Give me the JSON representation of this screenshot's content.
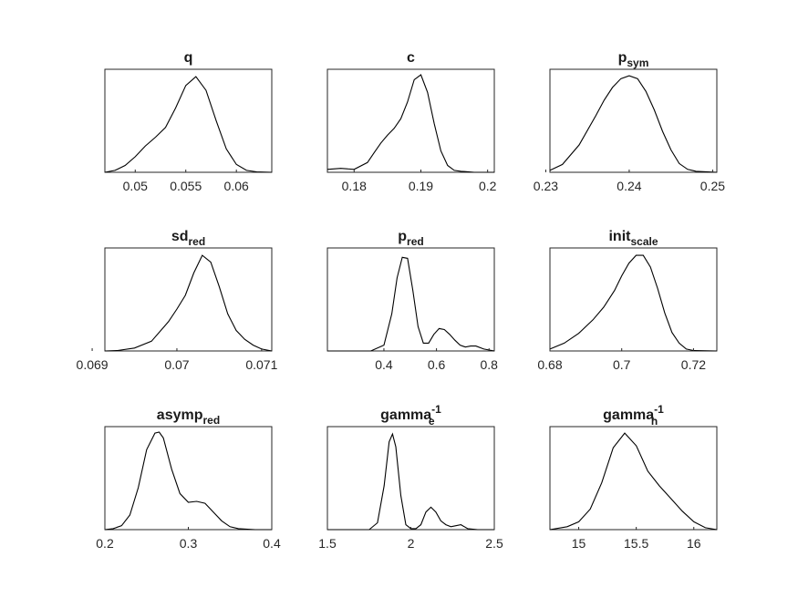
{
  "chart_data": [
    {
      "type": "line",
      "title": {
        "main": "q",
        "sub": "",
        "sup": ""
      },
      "xlim": [
        0.047,
        0.0635
      ],
      "ticks": [
        "0.05",
        "0.055",
        "0.06"
      ],
      "tick_values": [
        0.05,
        0.055,
        0.06
      ],
      "x": [
        0.047,
        0.048,
        0.049,
        0.05,
        0.051,
        0.052,
        0.053,
        0.054,
        0.055,
        0.056,
        0.057,
        0.058,
        0.059,
        0.06,
        0.061,
        0.062,
        0.0635
      ],
      "y": [
        0.0,
        0.02,
        0.07,
        0.16,
        0.27,
        0.36,
        0.46,
        0.66,
        0.89,
        0.98,
        0.84,
        0.53,
        0.24,
        0.08,
        0.02,
        0.005,
        0.0
      ]
    },
    {
      "type": "line",
      "title": {
        "main": "c",
        "sub": "",
        "sup": ""
      },
      "xlim": [
        0.176,
        0.201
      ],
      "ticks": [
        "0.18",
        "0.19",
        "0.2"
      ],
      "tick_values": [
        0.18,
        0.19,
        0.2
      ],
      "x": [
        0.176,
        0.178,
        0.18,
        0.182,
        0.183,
        0.184,
        0.185,
        0.186,
        0.187,
        0.188,
        0.189,
        0.19,
        0.191,
        0.192,
        0.193,
        0.194,
        0.195,
        0.196,
        0.198,
        0.201
      ],
      "y": [
        0.03,
        0.04,
        0.03,
        0.1,
        0.2,
        0.3,
        0.38,
        0.45,
        0.55,
        0.72,
        0.95,
        1.0,
        0.82,
        0.5,
        0.22,
        0.07,
        0.02,
        0.01,
        0.0,
        0.0
      ]
    },
    {
      "type": "line",
      "title": {
        "main": "p",
        "sub": "sym",
        "sup": ""
      },
      "xlim": [
        0.2305,
        0.2505
      ],
      "ticks": [
        "0.23",
        "0.24",
        "0.25"
      ],
      "tick_values": [
        0.23,
        0.24,
        0.25
      ],
      "x": [
        0.2305,
        0.232,
        0.234,
        0.236,
        0.237,
        0.238,
        0.239,
        0.24,
        0.241,
        0.242,
        0.243,
        0.244,
        0.245,
        0.246,
        0.247,
        0.248,
        0.2505
      ],
      "y": [
        0.02,
        0.08,
        0.28,
        0.58,
        0.74,
        0.87,
        0.96,
        0.99,
        0.96,
        0.83,
        0.64,
        0.42,
        0.23,
        0.09,
        0.03,
        0.01,
        0.0
      ]
    },
    {
      "type": "line",
      "title": {
        "main": "sd",
        "sub": "red",
        "sup": ""
      },
      "xlim": [
        0.06915,
        0.07112
      ],
      "ticks": [
        "0.069",
        "0.07",
        "0.071"
      ],
      "tick_values": [
        0.069,
        0.07,
        0.071
      ],
      "x": [
        0.06915,
        0.0693,
        0.0695,
        0.0697,
        0.0699,
        0.07,
        0.0701,
        0.0702,
        0.0703,
        0.0704,
        0.0705,
        0.0706,
        0.0707,
        0.0708,
        0.0709,
        0.071,
        0.07112
      ],
      "y": [
        0.0,
        0.005,
        0.03,
        0.1,
        0.3,
        0.43,
        0.57,
        0.8,
        0.98,
        0.91,
        0.66,
        0.38,
        0.21,
        0.12,
        0.06,
        0.02,
        0.0
      ]
    },
    {
      "type": "line",
      "title": {
        "main": "p",
        "sub": "red",
        "sup": ""
      },
      "xlim": [
        0.185,
        0.82
      ],
      "ticks": [
        "0.4",
        "0.6",
        "0.8"
      ],
      "tick_values": [
        0.4,
        0.6,
        0.8
      ],
      "x": [
        0.185,
        0.35,
        0.4,
        0.43,
        0.45,
        0.47,
        0.49,
        0.51,
        0.53,
        0.55,
        0.57,
        0.59,
        0.61,
        0.63,
        0.65,
        0.67,
        0.69,
        0.71,
        0.73,
        0.75,
        0.78,
        0.82
      ],
      "y": [
        0.0,
        0.0,
        0.06,
        0.38,
        0.75,
        0.96,
        0.95,
        0.62,
        0.25,
        0.08,
        0.08,
        0.17,
        0.23,
        0.22,
        0.17,
        0.11,
        0.06,
        0.04,
        0.05,
        0.05,
        0.02,
        0.0
      ]
    },
    {
      "type": "line",
      "title": {
        "main": "init",
        "sub": "scale",
        "sup": ""
      },
      "xlim": [
        0.68,
        0.7265
      ],
      "ticks": [
        "0.68",
        "0.7",
        "0.72"
      ],
      "tick_values": [
        0.68,
        0.7,
        0.72
      ],
      "x": [
        0.68,
        0.684,
        0.688,
        0.692,
        0.695,
        0.698,
        0.7,
        0.702,
        0.704,
        0.706,
        0.708,
        0.71,
        0.712,
        0.714,
        0.716,
        0.718,
        0.72,
        0.7265
      ],
      "y": [
        0.02,
        0.08,
        0.18,
        0.32,
        0.45,
        0.62,
        0.77,
        0.9,
        0.98,
        0.98,
        0.86,
        0.64,
        0.39,
        0.19,
        0.08,
        0.02,
        0.005,
        0.0
      ]
    },
    {
      "type": "line",
      "title": {
        "main": "asymp",
        "sub": "red",
        "sup": ""
      },
      "xlim": [
        0.2,
        0.4
      ],
      "ticks": [
        "0.2",
        "0.3",
        "0.4"
      ],
      "tick_values": [
        0.2,
        0.3,
        0.4
      ],
      "x": [
        0.2,
        0.21,
        0.22,
        0.23,
        0.24,
        0.25,
        0.26,
        0.265,
        0.27,
        0.28,
        0.29,
        0.3,
        0.31,
        0.32,
        0.33,
        0.34,
        0.35,
        0.36,
        0.38,
        0.4
      ],
      "y": [
        0.0,
        0.01,
        0.04,
        0.15,
        0.43,
        0.82,
        0.99,
        1.0,
        0.94,
        0.62,
        0.37,
        0.28,
        0.29,
        0.27,
        0.18,
        0.09,
        0.03,
        0.01,
        0.0,
        0.0
      ]
    },
    {
      "type": "line",
      "title": {
        "main": "gamma",
        "sub": "e",
        "sup": "-1"
      },
      "xlim": [
        1.5,
        2.5
      ],
      "ticks": [
        "1.5",
        "2",
        "2.5"
      ],
      "tick_values": [
        1.5,
        2.0,
        2.5
      ],
      "x": [
        1.5,
        1.75,
        1.8,
        1.84,
        1.87,
        1.89,
        1.91,
        1.94,
        1.97,
        2.0,
        2.03,
        2.06,
        2.09,
        2.12,
        2.15,
        2.18,
        2.21,
        2.24,
        2.27,
        2.3,
        2.34,
        2.4,
        2.5
      ],
      "y": [
        0.0,
        0.0,
        0.07,
        0.45,
        0.9,
        0.98,
        0.85,
        0.35,
        0.05,
        0.01,
        0.01,
        0.05,
        0.18,
        0.23,
        0.18,
        0.09,
        0.05,
        0.03,
        0.04,
        0.05,
        0.01,
        0.0,
        0.0
      ]
    },
    {
      "type": "line",
      "title": {
        "main": "gamma",
        "sub": "h",
        "sup": "-1"
      },
      "xlim": [
        14.75,
        16.2
      ],
      "ticks": [
        "15",
        "15.5",
        "16"
      ],
      "tick_values": [
        15.0,
        15.5,
        16.0
      ],
      "x": [
        14.75,
        14.9,
        15.0,
        15.1,
        15.2,
        15.3,
        15.4,
        15.5,
        15.6,
        15.7,
        15.8,
        15.9,
        16.0,
        16.1,
        16.2
      ],
      "y": [
        0.0,
        0.03,
        0.08,
        0.21,
        0.48,
        0.84,
        0.99,
        0.86,
        0.6,
        0.45,
        0.32,
        0.19,
        0.08,
        0.02,
        0.0
      ]
    }
  ]
}
